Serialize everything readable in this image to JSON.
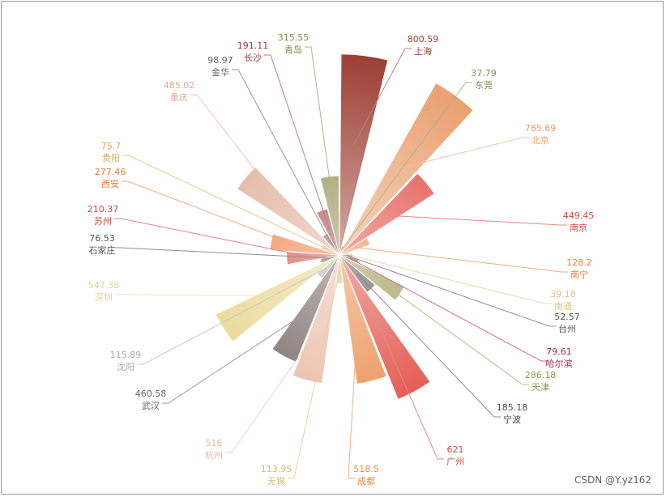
{
  "chart_data": {
    "type": "pie",
    "variant": "rose-area",
    "max_value": 800.59,
    "slices": [
      {
        "name": "上海",
        "value": 800.59,
        "color": "#9c3f34"
      },
      {
        "name": "东莞",
        "value": 37.79,
        "color": "#8d8748"
      },
      {
        "name": "北京",
        "value": 785.69,
        "color": "#ea9f70"
      },
      {
        "name": "南京",
        "value": 449.45,
        "color": "#e0473e"
      },
      {
        "name": "南宁",
        "value": 128.2,
        "color": "#ef7c3a"
      },
      {
        "name": "南通",
        "value": 39.18,
        "color": "#d8c486"
      },
      {
        "name": "台州",
        "value": 52.57,
        "color": "#5b5050"
      },
      {
        "name": "哈尔滨",
        "value": 79.61,
        "color": "#a32b47"
      },
      {
        "name": "天津",
        "value": 286.18,
        "color": "#9a9348"
      },
      {
        "name": "宁波",
        "value": 185.18,
        "color": "#4d4848"
      },
      {
        "name": "广州",
        "value": 621,
        "color": "#e0473e"
      },
      {
        "name": "成都",
        "value": 518.5,
        "color": "#ea8a4a"
      },
      {
        "name": "无锡",
        "value": 113.95,
        "color": "#d7b86e"
      },
      {
        "name": "杭州",
        "value": 516,
        "color": "#e8b8a2"
      },
      {
        "name": "武汉",
        "value": 460.58,
        "color": "#6e5f5a"
      },
      {
        "name": "沈阳",
        "value": 115.89,
        "color": "#b0a8a6"
      },
      {
        "name": "深圳",
        "value": 547.38,
        "color": "#e6d48a"
      },
      {
        "name": "石家庄",
        "value": 76.53,
        "color": "#585050"
      },
      {
        "name": "苏州",
        "value": 210.37,
        "color": "#d8443c"
      },
      {
        "name": "西安",
        "value": 277.46,
        "color": "#ef7a3a"
      },
      {
        "name": "贵阳",
        "value": 75.7,
        "color": "#d9ad60"
      },
      {
        "name": "重庆",
        "value": 485.02,
        "color": "#deaa95"
      },
      {
        "name": "金华",
        "value": 98.97,
        "color": "#6a5e5e"
      },
      {
        "name": "长沙",
        "value": 191.11,
        "color": "#9c3a3a"
      },
      {
        "name": "青岛",
        "value": 315.55,
        "color": "#8d8748"
      }
    ]
  },
  "watermark": "CSDN @Y.yz162"
}
